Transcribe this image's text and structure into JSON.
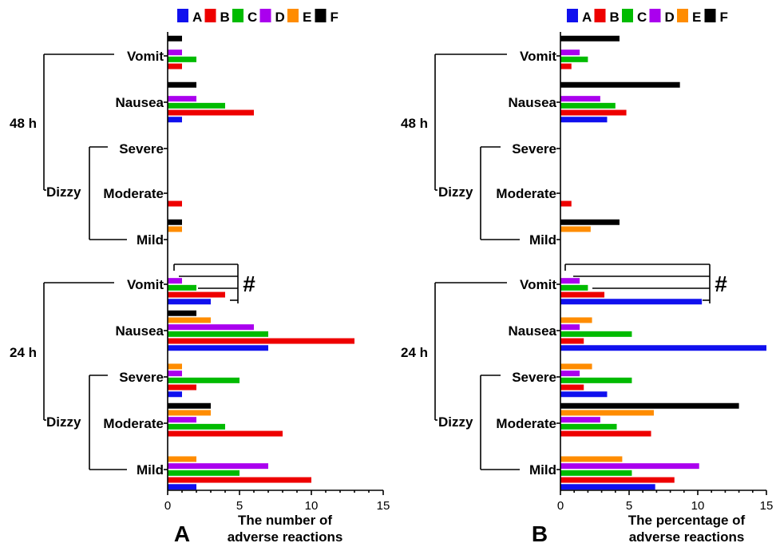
{
  "chart_data": [
    {
      "type": "bar",
      "panel_label": "A",
      "xlabel": [
        "The number of",
        "adverse reactions"
      ],
      "xlim": [
        0,
        15
      ],
      "xticks": [
        0,
        5,
        10,
        15
      ],
      "series_names": [
        "A",
        "B",
        "C",
        "D",
        "E",
        "F"
      ],
      "groups": [
        {
          "time": "48 h",
          "categories": [
            {
              "name": "Vomit",
              "values": [
                0,
                1,
                2,
                1,
                0,
                1
              ]
            },
            {
              "name": "Nausea",
              "values": [
                1,
                6,
                4,
                2,
                0,
                2
              ]
            },
            {
              "name": "Severe",
              "values": [
                0,
                0,
                0,
                0,
                0,
                0
              ]
            },
            {
              "name": "Moderate",
              "values": [
                0,
                1,
                0,
                0,
                0,
                0
              ]
            },
            {
              "name": "Mild",
              "values": [
                0,
                0,
                0,
                0,
                1,
                1
              ]
            }
          ]
        },
        {
          "time": "24 h",
          "categories": [
            {
              "name": "Vomit",
              "values": [
                3,
                4,
                2,
                1,
                0,
                0
              ]
            },
            {
              "name": "Nausea",
              "values": [
                7,
                13,
                7,
                6,
                3,
                2
              ]
            },
            {
              "name": "Severe",
              "values": [
                1,
                2,
                5,
                1,
                1,
                0
              ]
            },
            {
              "name": "Moderate",
              "values": [
                0,
                8,
                4,
                2,
                3,
                3
              ]
            },
            {
              "name": "Mild",
              "values": [
                2,
                10,
                5,
                7,
                2,
                0
              ]
            }
          ]
        }
      ],
      "dizzy_label": "Dizzy",
      "significance_marker": "#"
    },
    {
      "type": "bar",
      "panel_label": "B",
      "xlabel": [
        "The percentage of",
        "adverse reactions"
      ],
      "xlim": [
        0,
        15
      ],
      "xticks": [
        0,
        5,
        10,
        15
      ],
      "series_names": [
        "A",
        "B",
        "C",
        "D",
        "E",
        "F"
      ],
      "groups": [
        {
          "time": "48 h",
          "categories": [
            {
              "name": "Vomit",
              "values": [
                0,
                0.8,
                2.0,
                1.4,
                0,
                4.3
              ]
            },
            {
              "name": "Nausea",
              "values": [
                3.4,
                4.8,
                4.0,
                2.9,
                0,
                8.7
              ]
            },
            {
              "name": "Severe",
              "values": [
                0,
                0,
                0,
                0,
                0,
                0
              ]
            },
            {
              "name": "Moderate",
              "values": [
                0,
                0.8,
                0,
                0,
                0,
                0
              ]
            },
            {
              "name": "Mild",
              "values": [
                0,
                0,
                0,
                0,
                2.2,
                4.3
              ]
            }
          ]
        },
        {
          "time": "24 h",
          "categories": [
            {
              "name": "Vomit",
              "values": [
                10.3,
                3.2,
                2.0,
                1.4,
                0,
                0
              ]
            },
            {
              "name": "Nausea",
              "values": [
                15.0,
                1.7,
                5.2,
                1.4,
                2.3,
                0
              ]
            },
            {
              "name": "Severe",
              "values": [
                3.4,
                1.7,
                5.2,
                1.4,
                2.3,
                0
              ]
            },
            {
              "name": "Moderate",
              "values": [
                0,
                6.6,
                4.1,
                2.9,
                6.8,
                13.0
              ]
            },
            {
              "name": "Mild",
              "values": [
                6.9,
                8.3,
                5.2,
                10.1,
                4.5,
                0
              ]
            }
          ]
        }
      ],
      "dizzy_label": "Dizzy",
      "significance_marker": "#"
    }
  ],
  "legend": {
    "items": [
      "A",
      "B",
      "C",
      "D",
      "E",
      "F"
    ],
    "colors": [
      "#1010ee",
      "#ee0000",
      "#00bb00",
      "#aa00ee",
      "#ff8c00",
      "#000000"
    ]
  }
}
